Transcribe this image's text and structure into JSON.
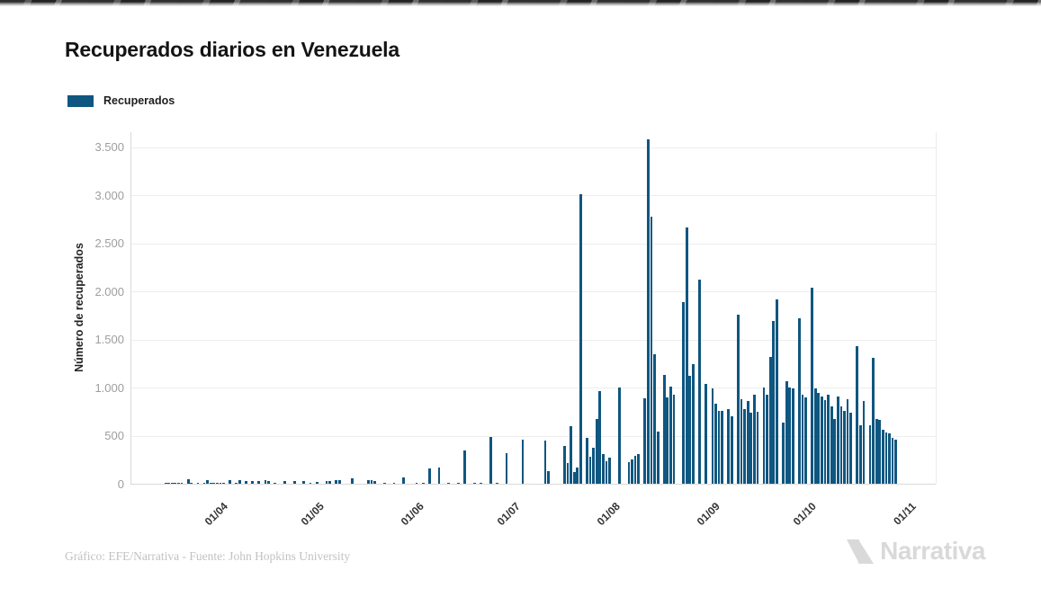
{
  "page": {
    "title": "Recuperados diarios en Venezuela"
  },
  "legend": {
    "label": "Recuperados",
    "color": "#0F5680"
  },
  "footer": {
    "credit": "Gráfico: EFE/Narrativa - Fuente: John Hopkins University",
    "brand": "Narrativa"
  },
  "colors": {
    "bar": "#0F5680",
    "grid": "#ededed",
    "axis": "#d9d9d9",
    "tick_text": "#9e9e9e"
  },
  "chart_data": {
    "type": "bar",
    "title": "Recuperados diarios en Venezuela",
    "xlabel": "",
    "ylabel": "Número de recuperados",
    "legend_entries": [
      "Recuperados"
    ],
    "legend_position": "top-left",
    "grid": "horizontal",
    "bar_color": "#0F5680",
    "ylim": [
      0,
      3500
    ],
    "yticks": [
      {
        "label": "0",
        "value": 0
      },
      {
        "label": "500",
        "value": 500
      },
      {
        "label": "1.000",
        "value": 1000
      },
      {
        "label": "1.500",
        "value": 1500
      },
      {
        "label": "2.000",
        "value": 2000
      },
      {
        "label": "2.500",
        "value": 2500
      },
      {
        "label": "3.000",
        "value": 3000
      },
      {
        "label": "3.500",
        "value": 3500
      }
    ],
    "xticks": [
      "01/04",
      "01/05",
      "01/06",
      "01/07",
      "01/08",
      "01/09",
      "01/10",
      "01/11"
    ],
    "date_format": "DD/MM",
    "points": [
      [
        "16/03",
        3
      ],
      [
        "17/03",
        5
      ],
      [
        "18/03",
        8
      ],
      [
        "19/03",
        10
      ],
      [
        "20/03",
        6
      ],
      [
        "21/03",
        4
      ],
      [
        "23/03",
        45
      ],
      [
        "24/03",
        10
      ],
      [
        "26/03",
        8
      ],
      [
        "28/03",
        10
      ],
      [
        "29/03",
        40
      ],
      [
        "30/03",
        12
      ],
      [
        "31/03",
        8
      ],
      [
        "01/04",
        5
      ],
      [
        "02/04",
        8
      ],
      [
        "03/04",
        10
      ],
      [
        "05/04",
        35
      ],
      [
        "07/04",
        6
      ],
      [
        "08/04",
        38
      ],
      [
        "10/04",
        30
      ],
      [
        "12/04",
        31
      ],
      [
        "14/04",
        25
      ],
      [
        "16/04",
        38
      ],
      [
        "17/04",
        30
      ],
      [
        "19/04",
        8
      ],
      [
        "22/04",
        25
      ],
      [
        "25/04",
        30
      ],
      [
        "28/04",
        25
      ],
      [
        "30/04",
        6
      ],
      [
        "02/05",
        19
      ],
      [
        "05/05",
        30
      ],
      [
        "06/05",
        28
      ],
      [
        "08/05",
        38
      ],
      [
        "09/05",
        35
      ],
      [
        "13/05",
        60
      ],
      [
        "18/05",
        38
      ],
      [
        "19/05",
        35
      ],
      [
        "20/05",
        30
      ],
      [
        "23/05",
        6
      ],
      [
        "26/05",
        8
      ],
      [
        "29/05",
        65
      ],
      [
        "02/06",
        10
      ],
      [
        "04/06",
        12
      ],
      [
        "06/06",
        155
      ],
      [
        "09/06",
        170
      ],
      [
        "12/06",
        10
      ],
      [
        "15/06",
        10
      ],
      [
        "17/06",
        350
      ],
      [
        "20/06",
        8
      ],
      [
        "22/06",
        10
      ],
      [
        "25/06",
        490
      ],
      [
        "27/06",
        10
      ],
      [
        "30/06",
        320
      ],
      [
        "05/07",
        460
      ],
      [
        "12/07",
        450
      ],
      [
        "13/07",
        130
      ],
      [
        "18/07",
        390
      ],
      [
        "19/07",
        215
      ],
      [
        "20/07",
        600
      ],
      [
        "21/07",
        120
      ],
      [
        "22/07",
        170
      ],
      [
        "23/07",
        3005
      ],
      [
        "25/07",
        480
      ],
      [
        "26/07",
        280
      ],
      [
        "27/07",
        375
      ],
      [
        "28/07",
        670
      ],
      [
        "29/07",
        965
      ],
      [
        "30/07",
        310
      ],
      [
        "31/07",
        235
      ],
      [
        "01/08",
        270
      ],
      [
        "04/08",
        1000
      ],
      [
        "07/08",
        225
      ],
      [
        "08/08",
        255
      ],
      [
        "09/08",
        290
      ],
      [
        "10/08",
        310
      ],
      [
        "12/08",
        890
      ],
      [
        "13/08",
        3580
      ],
      [
        "14/08",
        2780
      ],
      [
        "15/08",
        1350
      ],
      [
        "16/08",
        545
      ],
      [
        "18/08",
        1130
      ],
      [
        "19/08",
        900
      ],
      [
        "20/08",
        1010
      ],
      [
        "21/08",
        930
      ],
      [
        "24/08",
        1890
      ],
      [
        "25/08",
        2660
      ],
      [
        "26/08",
        1120
      ],
      [
        "27/08",
        1240
      ],
      [
        "29/08",
        2120
      ],
      [
        "31/08",
        1040
      ],
      [
        "02/09",
        990
      ],
      [
        "03/09",
        830
      ],
      [
        "04/09",
        755
      ],
      [
        "05/09",
        760
      ],
      [
        "07/09",
        780
      ],
      [
        "08/09",
        700
      ],
      [
        "10/09",
        1755
      ],
      [
        "11/09",
        875
      ],
      [
        "12/09",
        780
      ],
      [
        "13/09",
        860
      ],
      [
        "14/09",
        735
      ],
      [
        "15/09",
        925
      ],
      [
        "16/09",
        750
      ],
      [
        "18/09",
        1000
      ],
      [
        "19/09",
        925
      ],
      [
        "20/09",
        1320
      ],
      [
        "21/09",
        1695
      ],
      [
        "22/09",
        1915
      ],
      [
        "24/09",
        640
      ],
      [
        "25/09",
        1065
      ],
      [
        "26/09",
        1000
      ],
      [
        "27/09",
        990
      ],
      [
        "29/09",
        1720
      ],
      [
        "30/09",
        925
      ],
      [
        "01/10",
        895
      ],
      [
        "03/10",
        2040
      ],
      [
        "04/10",
        990
      ],
      [
        "05/10",
        945
      ],
      [
        "06/10",
        905
      ],
      [
        "07/10",
        870
      ],
      [
        "08/10",
        925
      ],
      [
        "09/10",
        800
      ],
      [
        "10/10",
        670
      ],
      [
        "11/10",
        905
      ],
      [
        "12/10",
        800
      ],
      [
        "13/10",
        755
      ],
      [
        "14/10",
        875
      ],
      [
        "15/10",
        735
      ],
      [
        "17/10",
        1430
      ],
      [
        "18/10",
        610
      ],
      [
        "19/10",
        860
      ],
      [
        "21/10",
        610
      ],
      [
        "22/10",
        1310
      ],
      [
        "23/10",
        670
      ],
      [
        "24/10",
        660
      ],
      [
        "25/10",
        565
      ],
      [
        "26/10",
        530
      ],
      [
        "27/10",
        520
      ],
      [
        "28/10",
        480
      ],
      [
        "29/10",
        455
      ]
    ]
  }
}
